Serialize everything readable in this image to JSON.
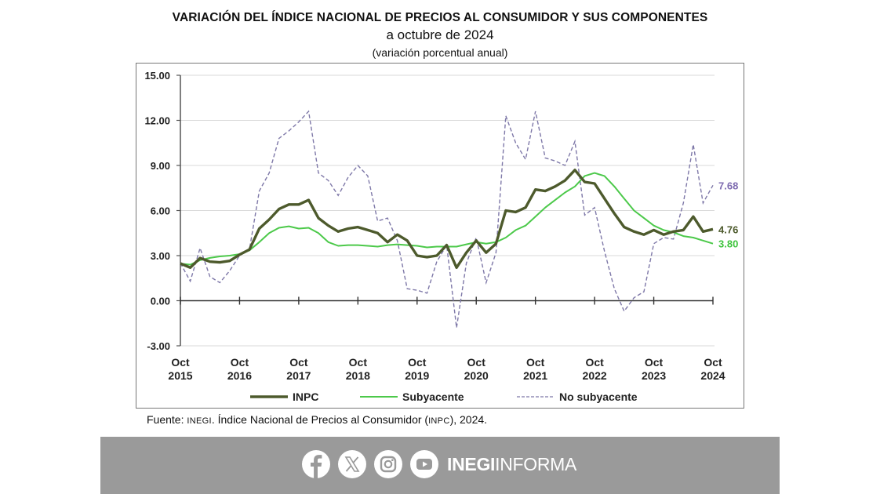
{
  "header": {
    "title": "VARIACIÓN DEL ÍNDICE NACIONAL DE PRECIOS AL CONSUMIDOR Y SUS COMPONENTES",
    "subtitle": "a octubre de 2024",
    "subsubtitle": "(variación porcentual anual)"
  },
  "chart_data": {
    "type": "line",
    "title": "VARIACIÓN DEL ÍNDICE NACIONAL DE PRECIOS AL CONSUMIDOR Y SUS COMPONENTES",
    "subtitle": "a octubre de 2024 (variación porcentual anual)",
    "xlabel": "",
    "ylabel": "",
    "ylim": [
      -3,
      15
    ],
    "yticks": [
      "15.00",
      "12.00",
      "9.00",
      "6.00",
      "3.00",
      "0.00",
      "-3.00"
    ],
    "ytick_values": [
      15,
      12,
      9,
      6,
      3,
      0,
      -3
    ],
    "grid": true,
    "legend_position": "bottom",
    "x_tick_labels": [
      [
        "Oct",
        "2015"
      ],
      [
        "Oct",
        "2016"
      ],
      [
        "Oct",
        "2017"
      ],
      [
        "Oct",
        "2018"
      ],
      [
        "Oct",
        "2019"
      ],
      [
        "Oct",
        "2020"
      ],
      [
        "Oct",
        "2021"
      ],
      [
        "Oct",
        "2022"
      ],
      [
        "Oct",
        "2023"
      ],
      [
        "Oct",
        "2024"
      ]
    ],
    "x_unit": "months since Oct 2015 (sampled every 2 months)",
    "x": [
      0,
      2,
      4,
      6,
      8,
      10,
      12,
      14,
      16,
      18,
      20,
      22,
      24,
      26,
      28,
      30,
      32,
      34,
      36,
      38,
      40,
      42,
      44,
      46,
      48,
      50,
      52,
      54,
      56,
      58,
      60,
      62,
      64,
      66,
      68,
      70,
      72,
      74,
      76,
      78,
      80,
      82,
      84,
      86,
      88,
      90,
      92,
      94,
      96,
      98,
      100,
      102,
      104,
      106,
      108
    ],
    "series": [
      {
        "name": "INPC",
        "color": "#4d5a2c",
        "style": "solid-thick",
        "values": [
          2.48,
          2.2,
          2.84,
          2.6,
          2.55,
          2.65,
          3.06,
          3.4,
          4.8,
          5.4,
          6.1,
          6.4,
          6.4,
          6.7,
          5.5,
          5.0,
          4.6,
          4.8,
          4.9,
          4.7,
          4.5,
          3.9,
          4.4,
          4.0,
          3.0,
          2.9,
          3.0,
          3.7,
          2.2,
          3.2,
          4.0,
          3.2,
          3.8,
          6.0,
          5.9,
          6.2,
          7.4,
          7.3,
          7.6,
          8.0,
          8.7,
          7.9,
          7.8,
          6.8,
          5.8,
          4.9,
          4.6,
          4.4,
          4.7,
          4.4,
          4.6,
          4.7,
          5.6,
          4.6,
          4.76
        ]
      },
      {
        "name": "Subyacente",
        "color": "#4cc94a",
        "style": "solid",
        "values": [
          2.47,
          2.4,
          2.7,
          2.85,
          2.95,
          3.0,
          3.1,
          3.35,
          3.9,
          4.5,
          4.85,
          4.95,
          4.8,
          4.85,
          4.5,
          3.9,
          3.65,
          3.7,
          3.7,
          3.65,
          3.6,
          3.7,
          3.75,
          3.7,
          3.65,
          3.55,
          3.6,
          3.6,
          3.6,
          3.75,
          3.9,
          3.8,
          3.9,
          4.2,
          4.7,
          5.0,
          5.6,
          6.2,
          6.7,
          7.2,
          7.6,
          8.3,
          8.5,
          8.3,
          7.6,
          6.8,
          6.0,
          5.5,
          5.0,
          4.7,
          4.55,
          4.3,
          4.2,
          4.0,
          3.8
        ]
      },
      {
        "name": "No subyacente",
        "color": "#7e78a8",
        "style": "dashed",
        "values": [
          2.5,
          1.3,
          3.5,
          1.6,
          1.2,
          2.0,
          3.0,
          3.4,
          7.3,
          8.5,
          10.8,
          11.3,
          11.9,
          12.6,
          8.5,
          8.0,
          7.0,
          8.2,
          9.0,
          8.3,
          5.3,
          5.5,
          4.0,
          0.8,
          0.7,
          0.5,
          2.6,
          3.7,
          -1.8,
          2.5,
          4.2,
          1.2,
          3.2,
          12.3,
          10.5,
          9.4,
          12.6,
          9.5,
          9.3,
          9.0,
          10.6,
          5.7,
          6.2,
          3.3,
          0.8,
          -0.7,
          0.2,
          0.6,
          3.8,
          4.2,
          4.1,
          6.5,
          10.4,
          6.5,
          7.68
        ]
      }
    ],
    "end_labels": [
      {
        "series": "No subyacente",
        "text": "7.68",
        "color": "#7e6bb0"
      },
      {
        "series": "INPC",
        "text": "4.76",
        "color": "#4d5a2c"
      },
      {
        "series": "Subyacente",
        "text": "3.80",
        "color": "#3fc43e"
      }
    ],
    "legend": [
      {
        "label": "INPC",
        "color": "#4d5a2c",
        "style": "solid-thick"
      },
      {
        "label": "Subyacente",
        "color": "#4cc94a",
        "style": "solid"
      },
      {
        "label": "No subyacente",
        "color": "#7e78a8",
        "style": "dashed"
      }
    ]
  },
  "source": {
    "prefix": "Fuente: ",
    "org": "INEGI",
    "middle": ". Índice Nacional de Precios al Consumidor (",
    "abbr": "INPC",
    "suffix": "), 2024."
  },
  "footer": {
    "social": [
      "facebook-icon",
      "x-icon",
      "instagram-icon",
      "youtube-icon"
    ],
    "brand_bold": "INEGI",
    "brand_light": "INFORMA",
    "background": "#9a9a9a"
  }
}
